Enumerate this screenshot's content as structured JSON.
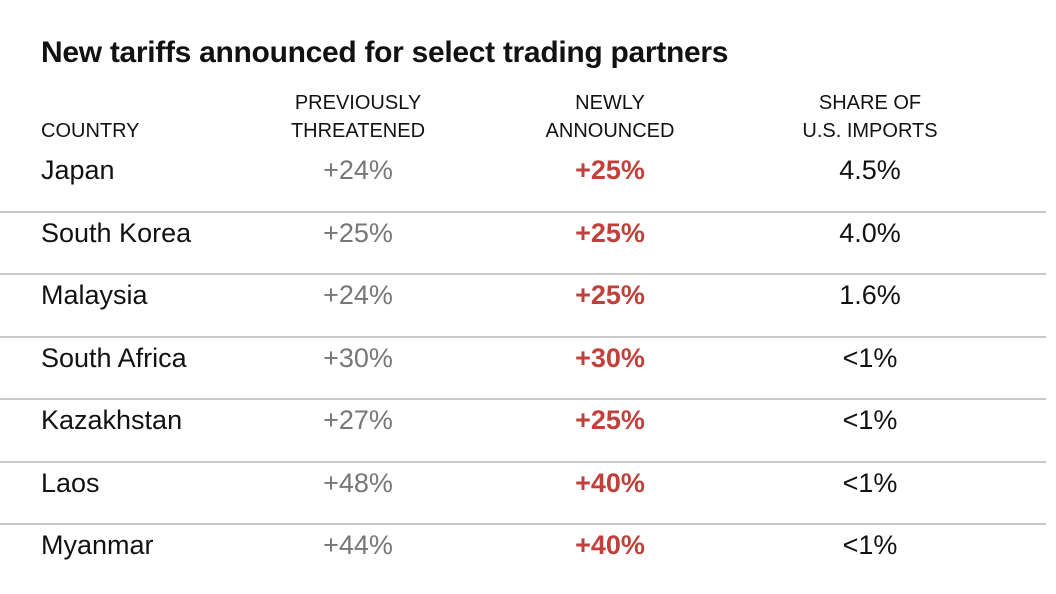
{
  "title": "New tariffs announced for select trading partners",
  "colors": {
    "new_value": "#c0413b",
    "previous_value": "#777777",
    "divider": "#c8c8c8",
    "text": "#121212"
  },
  "chart_data": {
    "type": "table",
    "title": "New tariffs announced for select trading partners",
    "columns": [
      {
        "key": "country",
        "label_lines": [
          "COUNTRY"
        ]
      },
      {
        "key": "previously_threatened",
        "label_lines": [
          "PREVIOUSLY",
          "THREATENED"
        ]
      },
      {
        "key": "newly_announced",
        "label_lines": [
          "NEWLY",
          "ANNOUNCED"
        ]
      },
      {
        "key": "share_of_us_imports",
        "label_lines": [
          "SHARE OF",
          "U.S. IMPORTS"
        ]
      }
    ],
    "rows": [
      {
        "country": "Japan",
        "previously_threatened": "+24%",
        "newly_announced": "+25%",
        "share_of_us_imports": "4.5%"
      },
      {
        "country": "South Korea",
        "previously_threatened": "+25%",
        "newly_announced": "+25%",
        "share_of_us_imports": "4.0%"
      },
      {
        "country": "Malaysia",
        "previously_threatened": "+24%",
        "newly_announced": "+25%",
        "share_of_us_imports": "1.6%"
      },
      {
        "country": "South Africa",
        "previously_threatened": "+30%",
        "newly_announced": "+30%",
        "share_of_us_imports": "<1%"
      },
      {
        "country": "Kazakhstan",
        "previously_threatened": "+27%",
        "newly_announced": "+25%",
        "share_of_us_imports": "<1%"
      },
      {
        "country": "Laos",
        "previously_threatened": "+48%",
        "newly_announced": "+40%",
        "share_of_us_imports": "<1%"
      },
      {
        "country": "Myanmar",
        "previously_threatened": "+44%",
        "newly_announced": "+40%",
        "share_of_us_imports": "<1%"
      }
    ]
  }
}
